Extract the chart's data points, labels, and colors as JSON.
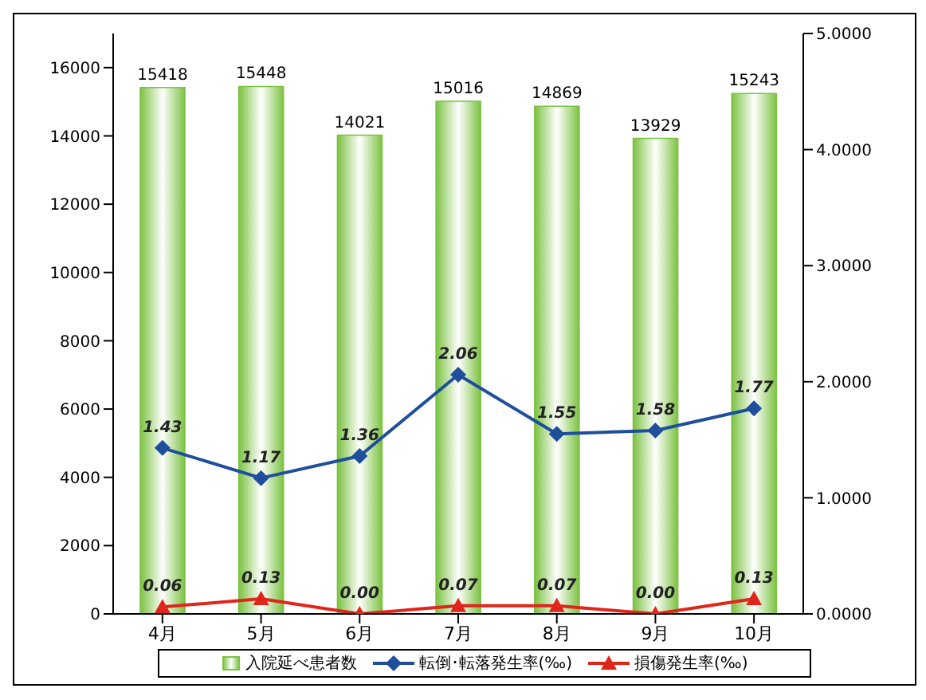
{
  "chart_data": {
    "type": "bar",
    "categories": [
      "4月",
      "5月",
      "6月",
      "7月",
      "8月",
      "9月",
      "10月"
    ],
    "series": [
      {
        "name": "入院延べ患者数",
        "color": "#7cc242",
        "values": [
          15418,
          15448,
          14021,
          15016,
          14869,
          13929,
          15243
        ]
      },
      {
        "name": "転倒･転落発生率(‰)",
        "type": "line",
        "axis": "y2",
        "marker": "diamond",
        "color": "#1f4e9c",
        "values": [
          1.43,
          1.17,
          1.36,
          2.06,
          1.55,
          1.58,
          1.77
        ],
        "value_labels": [
          "1.43",
          "1.17",
          "1.36",
          "2.06",
          "1.55",
          "1.58",
          "1.77"
        ]
      },
      {
        "name": "損傷発生率(‰)",
        "type": "line",
        "axis": "y2",
        "marker": "triangle",
        "color": "#e0261b",
        "values": [
          0.06,
          0.13,
          0.0,
          0.07,
          0.07,
          0.0,
          0.13
        ],
        "value_labels": [
          "0.06",
          "0.13",
          "0.00",
          "0.07",
          "0.07",
          "0.00",
          "0.13"
        ]
      }
    ],
    "ylim": [
      0,
      17000
    ],
    "yticks": [
      0,
      2000,
      4000,
      6000,
      8000,
      10000,
      12000,
      14000,
      16000
    ],
    "y2lim": [
      0,
      5
    ],
    "y2ticks": [
      {
        "value": 0,
        "label": "0.0000"
      },
      {
        "value": 1,
        "label": "1.0000"
      },
      {
        "value": 2,
        "label": "2.0000"
      },
      {
        "value": 3,
        "label": "3.0000"
      },
      {
        "value": 4,
        "label": "4.0000"
      },
      {
        "value": 5,
        "label": "5.0000"
      }
    ],
    "data_labels": true,
    "grid": false,
    "legend": "bottom"
  }
}
